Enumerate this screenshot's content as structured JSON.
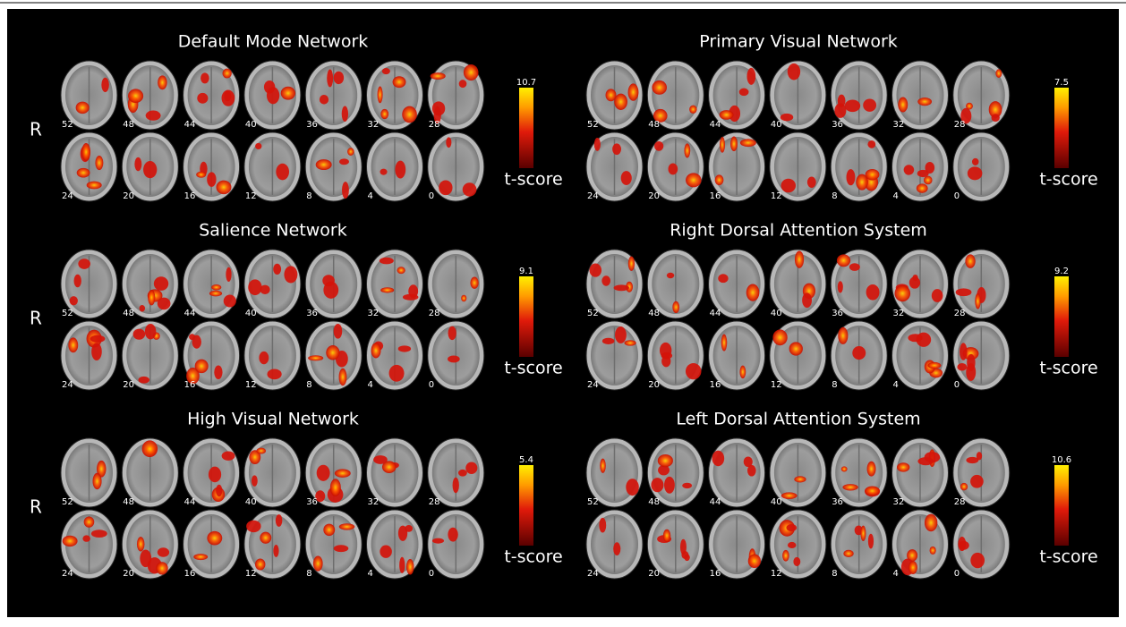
{
  "panels": [
    {
      "title": "Default Mode Network",
      "side_label": "R",
      "slices_top": [
        52,
        48,
        44,
        40,
        36,
        32,
        28
      ],
      "slices_bottom": [
        24,
        20,
        16,
        12,
        8,
        4,
        0
      ],
      "colorbar": {
        "max": 10.7,
        "label": "t-score"
      }
    },
    {
      "title": "Primary Visual Network",
      "slices_top": [
        52,
        48,
        44,
        40,
        36,
        32,
        28
      ],
      "slices_bottom": [
        24,
        20,
        16,
        12,
        8,
        4,
        0
      ],
      "colorbar": {
        "max": 7.5,
        "label": "t-score"
      }
    },
    {
      "title": "Salience Network",
      "side_label": "R",
      "slices_top": [
        52,
        48,
        44,
        40,
        36,
        32,
        28
      ],
      "slices_bottom": [
        24,
        20,
        16,
        12,
        8,
        4,
        0
      ],
      "colorbar": {
        "max": 9.1,
        "label": "t-score"
      }
    },
    {
      "title": "Right Dorsal Attention System",
      "slices_top": [
        52,
        48,
        44,
        40,
        36,
        32,
        28
      ],
      "slices_bottom": [
        24,
        20,
        16,
        12,
        8,
        4,
        0
      ],
      "colorbar": {
        "max": 9.2,
        "label": "t-score"
      }
    },
    {
      "title": "High Visual Network",
      "side_label": "R",
      "slices_top": [
        52,
        48,
        44,
        40,
        36,
        32,
        28
      ],
      "slices_bottom": [
        24,
        20,
        16,
        12,
        8,
        4,
        0
      ],
      "colorbar": {
        "max": 5.4,
        "label": "t-score"
      }
    },
    {
      "title": "Left Dorsal Attention System",
      "slices_top": [
        52,
        48,
        44,
        40,
        36,
        32,
        28
      ],
      "slices_bottom": [
        24,
        20,
        16,
        12,
        8,
        4,
        0
      ],
      "colorbar": {
        "max": 10.6,
        "label": "t-score"
      }
    }
  ]
}
